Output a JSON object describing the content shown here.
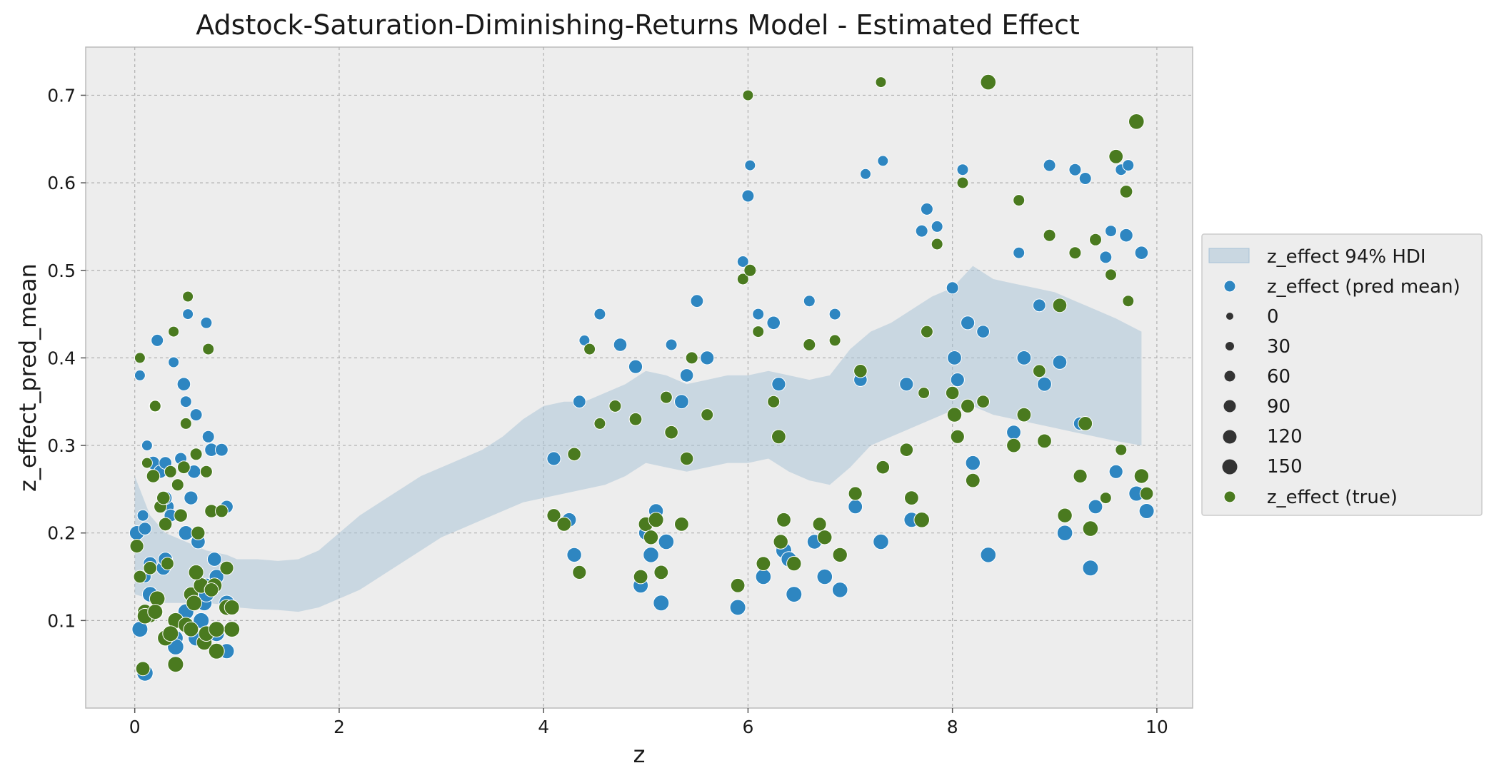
{
  "chart_data": {
    "type": "scatter",
    "title": "Adstock-Saturation-Diminishing-Returns Model - Estimated Effect",
    "xlabel": "z",
    "ylabel": "z_effect_pred_mean",
    "xlim": [
      -0.48,
      10.35
    ],
    "ylim": [
      0.0,
      0.755
    ],
    "xticks": [
      0,
      2,
      4,
      6,
      8,
      10
    ],
    "yticks": [
      0.1,
      0.2,
      0.3,
      0.4,
      0.5,
      0.6,
      0.7
    ],
    "grid": true,
    "legend_position": "right-outside",
    "colors": {
      "hdi": "#a6c2d6",
      "pred": "#2e86c1",
      "true": "#4a7a1f",
      "background": "#ededed"
    },
    "legend": {
      "hdi_label": "z_effect 94% HDI",
      "pred_label": "z_effect (pred mean)",
      "true_label": "z_effect (true)",
      "size_values": [
        "0",
        "30",
        "60",
        "90",
        "120",
        "150"
      ]
    },
    "hdi": {
      "x": [
        0.0,
        0.15,
        0.3,
        0.5,
        0.7,
        0.9,
        1.0,
        1.2,
        1.4,
        1.6,
        1.8,
        2.0,
        2.2,
        2.4,
        2.6,
        2.8,
        3.0,
        3.2,
        3.4,
        3.6,
        3.8,
        4.0,
        4.2,
        4.4,
        4.6,
        4.8,
        5.0,
        5.2,
        5.4,
        5.6,
        5.8,
        6.0,
        6.2,
        6.4,
        6.6,
        6.8,
        7.0,
        7.2,
        7.4,
        7.6,
        7.8,
        8.0,
        8.2,
        8.4,
        8.6,
        8.8,
        9.0,
        9.2,
        9.4,
        9.6,
        9.85
      ],
      "upper": [
        0.265,
        0.22,
        0.2,
        0.19,
        0.18,
        0.175,
        0.17,
        0.17,
        0.168,
        0.17,
        0.18,
        0.2,
        0.22,
        0.235,
        0.25,
        0.265,
        0.275,
        0.285,
        0.295,
        0.31,
        0.33,
        0.345,
        0.35,
        0.35,
        0.36,
        0.37,
        0.385,
        0.38,
        0.37,
        0.375,
        0.38,
        0.38,
        0.385,
        0.38,
        0.375,
        0.38,
        0.41,
        0.43,
        0.44,
        0.455,
        0.47,
        0.48,
        0.505,
        0.49,
        0.485,
        0.48,
        0.475,
        0.465,
        0.455,
        0.445,
        0.43
      ],
      "lower": [
        0.13,
        0.125,
        0.12,
        0.12,
        0.12,
        0.118,
        0.115,
        0.113,
        0.112,
        0.11,
        0.115,
        0.125,
        0.135,
        0.15,
        0.165,
        0.18,
        0.195,
        0.205,
        0.215,
        0.225,
        0.235,
        0.24,
        0.245,
        0.25,
        0.255,
        0.265,
        0.28,
        0.275,
        0.27,
        0.275,
        0.28,
        0.28,
        0.285,
        0.27,
        0.26,
        0.255,
        0.275,
        0.3,
        0.31,
        0.32,
        0.33,
        0.34,
        0.345,
        0.335,
        0.33,
        0.325,
        0.32,
        0.315,
        0.31,
        0.305,
        0.3
      ]
    },
    "series": [
      {
        "name": "z_effect (pred mean)",
        "x": [
          0.02,
          0.05,
          0.08,
          0.1,
          0.12,
          0.15,
          0.18,
          0.2,
          0.22,
          0.25,
          0.28,
          0.3,
          0.32,
          0.35,
          0.38,
          0.4,
          0.45,
          0.48,
          0.5,
          0.52,
          0.55,
          0.58,
          0.6,
          0.62,
          0.65,
          0.68,
          0.7,
          0.72,
          0.75,
          0.78,
          0.8,
          0.85,
          0.9,
          0.95,
          0.05,
          0.1,
          0.15,
          0.2,
          0.3,
          0.4,
          0.5,
          0.6,
          0.7,
          0.8,
          0.9,
          0.1,
          0.3,
          0.5,
          0.7,
          0.9,
          4.1,
          4.25,
          4.3,
          4.35,
          4.4,
          4.55,
          4.75,
          4.9,
          4.95,
          5.0,
          5.05,
          5.1,
          5.15,
          5.2,
          5.25,
          5.35,
          5.4,
          5.5,
          5.6,
          5.9,
          5.95,
          6.0,
          6.02,
          6.1,
          6.15,
          6.25,
          6.3,
          6.35,
          6.4,
          6.45,
          6.6,
          6.65,
          6.75,
          6.85,
          6.9,
          7.05,
          7.1,
          7.15,
          7.3,
          7.32,
          7.55,
          7.6,
          7.7,
          7.75,
          7.85,
          8.0,
          8.02,
          8.05,
          8.1,
          8.15,
          8.2,
          8.3,
          8.35,
          8.6,
          8.65,
          8.7,
          8.85,
          8.9,
          8.95,
          9.05,
          9.1,
          9.2,
          9.25,
          9.3,
          9.35,
          9.4,
          9.5,
          9.55,
          9.6,
          9.65,
          9.7,
          9.72,
          9.8,
          9.85,
          9.9
        ],
        "y": [
          0.2,
          0.38,
          0.22,
          0.15,
          0.3,
          0.165,
          0.28,
          0.345,
          0.42,
          0.27,
          0.16,
          0.28,
          0.23,
          0.22,
          0.395,
          0.08,
          0.285,
          0.37,
          0.35,
          0.45,
          0.24,
          0.27,
          0.335,
          0.19,
          0.1,
          0.12,
          0.44,
          0.31,
          0.295,
          0.17,
          0.085,
          0.295,
          0.23,
          0.09,
          0.09,
          0.04,
          0.13,
          0.11,
          0.17,
          0.07,
          0.11,
          0.08,
          0.14,
          0.15,
          0.065,
          0.205,
          0.24,
          0.2,
          0.13,
          0.12,
          0.285,
          0.215,
          0.175,
          0.35,
          0.42,
          0.45,
          0.415,
          0.39,
          0.14,
          0.2,
          0.175,
          0.225,
          0.12,
          0.19,
          0.415,
          0.35,
          0.38,
          0.465,
          0.4,
          0.115,
          0.51,
          0.585,
          0.62,
          0.45,
          0.15,
          0.44,
          0.37,
          0.18,
          0.17,
          0.13,
          0.465,
          0.19,
          0.15,
          0.45,
          0.135,
          0.23,
          0.375,
          0.61,
          0.19,
          0.625,
          0.37,
          0.215,
          0.545,
          0.57,
          0.55,
          0.48,
          0.4,
          0.375,
          0.615,
          0.44,
          0.28,
          0.43,
          0.175,
          0.315,
          0.52,
          0.4,
          0.46,
          0.37,
          0.62,
          0.395,
          0.2,
          0.615,
          0.325,
          0.605,
          0.16,
          0.23,
          0.515,
          0.545,
          0.27,
          0.615,
          0.54,
          0.62,
          0.245,
          0.52,
          0.225
        ],
        "size": [
          90,
          20,
          30,
          40,
          20,
          70,
          60,
          40,
          40,
          60,
          80,
          50,
          60,
          50,
          20,
          100,
          40,
          60,
          30,
          20,
          70,
          60,
          40,
          80,
          120,
          110,
          30,
          40,
          60,
          80,
          120,
          50,
          50,
          110,
          120,
          130,
          110,
          110,
          80,
          130,
          120,
          120,
          90,
          90,
          100,
          50,
          60,
          90,
          110,
          110,
          70,
          80,
          90,
          50,
          20,
          30,
          60,
          70,
          100,
          80,
          110,
          90,
          120,
          110,
          30,
          80,
          60,
          50,
          70,
          120,
          30,
          40,
          20,
          30,
          110,
          60,
          70,
          120,
          110,
          120,
          30,
          90,
          110,
          30,
          110,
          80,
          60,
          20,
          110,
          20,
          70,
          100,
          40,
          40,
          30,
          40,
          80,
          70,
          30,
          70,
          90,
          50,
          110,
          80,
          30,
          80,
          50,
          80,
          40,
          80,
          110,
          40,
          60,
          40,
          120,
          80,
          40,
          30,
          70,
          30,
          60,
          30,
          100,
          60,
          100
        ],
        "color": "#2e86c1"
      },
      {
        "name": "z_effect (true)",
        "x": [
          0.02,
          0.05,
          0.08,
          0.1,
          0.12,
          0.15,
          0.18,
          0.2,
          0.22,
          0.25,
          0.28,
          0.3,
          0.32,
          0.35,
          0.38,
          0.4,
          0.42,
          0.45,
          0.48,
          0.5,
          0.52,
          0.55,
          0.58,
          0.6,
          0.62,
          0.65,
          0.68,
          0.7,
          0.72,
          0.75,
          0.78,
          0.8,
          0.85,
          0.9,
          0.95,
          0.05,
          0.1,
          0.2,
          0.3,
          0.4,
          0.5,
          0.6,
          0.7,
          0.8,
          0.9,
          0.15,
          0.35,
          0.55,
          0.75,
          0.95,
          4.1,
          4.2,
          4.3,
          4.35,
          4.45,
          4.55,
          4.7,
          4.9,
          4.95,
          5.0,
          5.05,
          5.1,
          5.15,
          5.2,
          5.25,
          5.35,
          5.4,
          5.45,
          5.6,
          5.9,
          5.95,
          6.0,
          6.02,
          6.1,
          6.15,
          6.25,
          6.3,
          6.32,
          6.35,
          6.45,
          6.6,
          6.7,
          6.75,
          6.85,
          6.9,
          7.05,
          7.1,
          7.3,
          7.32,
          7.55,
          7.6,
          7.7,
          7.72,
          7.75,
          7.85,
          8.0,
          8.02,
          8.05,
          8.1,
          8.15,
          8.2,
          8.3,
          8.35,
          8.6,
          8.65,
          8.7,
          8.85,
          8.9,
          8.95,
          9.05,
          9.1,
          9.2,
          9.25,
          9.3,
          9.35,
          9.4,
          9.5,
          9.55,
          9.6,
          9.65,
          9.7,
          9.72,
          9.8,
          9.85,
          9.9
        ],
        "y": [
          0.185,
          0.4,
          0.045,
          0.11,
          0.28,
          0.105,
          0.265,
          0.345,
          0.125,
          0.23,
          0.24,
          0.21,
          0.165,
          0.27,
          0.43,
          0.05,
          0.255,
          0.22,
          0.275,
          0.325,
          0.47,
          0.13,
          0.12,
          0.29,
          0.2,
          0.14,
          0.075,
          0.27,
          0.41,
          0.225,
          0.14,
          0.065,
          0.225,
          0.16,
          0.09,
          0.15,
          0.105,
          0.11,
          0.08,
          0.1,
          0.095,
          0.155,
          0.085,
          0.09,
          0.115,
          0.16,
          0.085,
          0.09,
          0.135,
          0.115,
          0.22,
          0.21,
          0.29,
          0.155,
          0.41,
          0.325,
          0.345,
          0.33,
          0.15,
          0.21,
          0.195,
          0.215,
          0.155,
          0.355,
          0.315,
          0.21,
          0.285,
          0.4,
          0.335,
          0.14,
          0.49,
          0.7,
          0.5,
          0.43,
          0.165,
          0.35,
          0.31,
          0.19,
          0.215,
          0.165,
          0.415,
          0.21,
          0.195,
          0.42,
          0.175,
          0.245,
          0.385,
          0.715,
          0.275,
          0.295,
          0.24,
          0.215,
          0.36,
          0.43,
          0.53,
          0.36,
          0.335,
          0.31,
          0.6,
          0.345,
          0.26,
          0.35,
          0.715,
          0.3,
          0.58,
          0.335,
          0.385,
          0.305,
          0.54,
          0.46,
          0.22,
          0.52,
          0.265,
          0.325,
          0.205,
          0.535,
          0.24,
          0.495,
          0.63,
          0.295,
          0.59,
          0.465,
          0.67,
          0.265,
          0.245
        ],
        "size": [
          70,
          20,
          80,
          100,
          20,
          60,
          60,
          30,
          110,
          50,
          60,
          60,
          50,
          40,
          20,
          120,
          40,
          60,
          50,
          30,
          20,
          90,
          110,
          40,
          70,
          110,
          110,
          40,
          30,
          60,
          100,
          120,
          50,
          70,
          120,
          50,
          110,
          100,
          120,
          120,
          110,
          100,
          110,
          120,
          120,
          60,
          120,
          100,
          80,
          100,
          70,
          80,
          60,
          70,
          30,
          30,
          40,
          50,
          80,
          90,
          90,
          100,
          80,
          40,
          60,
          80,
          60,
          40,
          40,
          80,
          30,
          20,
          40,
          30,
          80,
          40,
          80,
          90,
          80,
          90,
          40,
          70,
          90,
          30,
          90,
          70,
          60,
          20,
          60,
          60,
          80,
          110,
          30,
          40,
          30,
          60,
          90,
          70,
          30,
          70,
          80,
          50,
          110,
          80,
          30,
          80,
          50,
          80,
          40,
          80,
          90,
          40,
          70,
          80,
          110,
          40,
          30,
          30,
          80,
          30,
          50,
          30,
          110,
          90,
          60
        ],
        "color": "#4a7a1f"
      }
    ]
  }
}
